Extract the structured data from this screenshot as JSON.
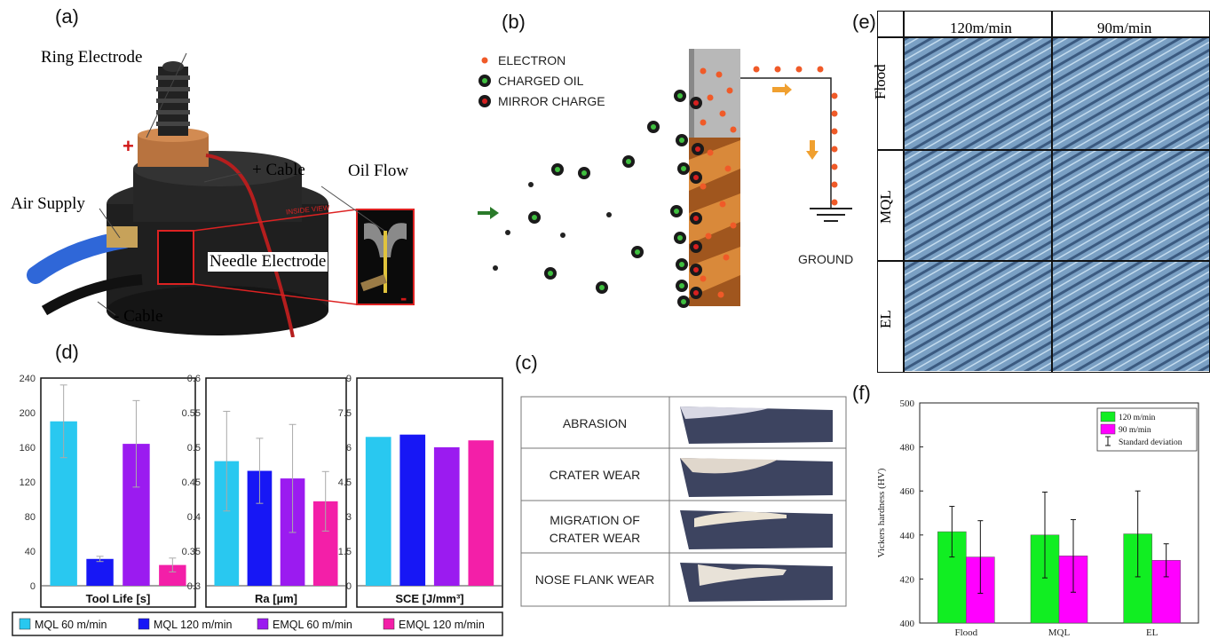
{
  "panels": {
    "a": {
      "label": "(a)",
      "callouts": {
        "ring_electrode": "Ring Electrode",
        "plus_cable": "+ Cable",
        "oil_flow": "Oil Flow",
        "air_supply": "Air Supply",
        "needle_electrode": "Needle Electrode",
        "minus_cable": "- Cable",
        "inside_view": "INSIDE VIEW",
        "plus_sign": "+",
        "minus_sign": "-"
      }
    },
    "b": {
      "label": "(b)",
      "legend": [
        "ELECTRON",
        "CHARGED OIL",
        "MIRROR CHARGE"
      ],
      "ground": "GROUND"
    },
    "c": {
      "label": "(c)",
      "rows": [
        "ABRASION",
        "CRATER WEAR",
        "MIGRATION OF CRATER WEAR",
        "NOSE FLANK WEAR"
      ]
    },
    "d": {
      "label": "(d)",
      "legend": [
        "MQL 60 m/min",
        "MQL 120 m/min",
        "EMQL 60 m/min",
        "EMQL 120 m/min"
      ],
      "colors": [
        "#29c8f0",
        "#1717f5",
        "#9b1bf0",
        "#f31fa8"
      ]
    },
    "e": {
      "label": "(e)",
      "columns": [
        "120m/min",
        "90m/min"
      ],
      "rows": [
        "Flood",
        "MQL",
        "EL"
      ]
    },
    "f": {
      "label": "(f)"
    }
  },
  "chart_data": [
    {
      "type": "bar",
      "id": "tool-life",
      "xlabel": "Tool Life [s]",
      "yticks": [
        "0",
        "40",
        "80",
        "120",
        "160",
        "200",
        "240"
      ],
      "ylim": [
        0,
        240
      ],
      "categories": [
        "MQL 60 m/min",
        "MQL 120 m/min",
        "EMQL 60 m/min",
        "EMQL 120 m/min"
      ],
      "values": [
        190,
        31,
        164,
        24
      ],
      "errors": [
        42,
        3,
        50,
        8
      ]
    },
    {
      "type": "bar",
      "id": "ra",
      "xlabel": "Ra [µm]",
      "yticks": [
        "0.3",
        "0.35",
        "0.4",
        "0.45",
        "0.5",
        "0.55",
        "0.6"
      ],
      "ylim": [
        0.3,
        0.6
      ],
      "categories": [
        "MQL 60 m/min",
        "MQL 120 m/min",
        "EMQL 60 m/min",
        "EMQL 120 m/min"
      ],
      "values": [
        0.48,
        0.466,
        0.455,
        0.422
      ],
      "errors": [
        0.072,
        0.047,
        0.078,
        0.043
      ]
    },
    {
      "type": "bar",
      "id": "sce",
      "xlabel": "SCE [J/mm³]",
      "yticks": [
        "0",
        "1.5",
        "3",
        "4.5",
        "6",
        "7.5",
        "9"
      ],
      "ylim": [
        0,
        9
      ],
      "categories": [
        "MQL 60 m/min",
        "MQL 120 m/min",
        "EMQL 60 m/min",
        "EMQL 120 m/min"
      ],
      "values": [
        6.45,
        6.55,
        6.0,
        6.3
      ]
    },
    {
      "type": "bar",
      "id": "vickers",
      "ylabel": "Vickers hardness (HV)",
      "yticks": [
        "400",
        "420",
        "440",
        "460",
        "480",
        "500"
      ],
      "ylim": [
        400,
        500
      ],
      "categories": [
        "Flood",
        "MQL",
        "EL"
      ],
      "series": [
        {
          "name": "120 m/min",
          "color": "#11ee22",
          "values": [
            441.5,
            440,
            440.5
          ],
          "errors": [
            11.5,
            19.5,
            19.5
          ]
        },
        {
          "name": "90 m/min",
          "color": "#ff00ff",
          "values": [
            430,
            430.5,
            428.5
          ],
          "errors": [
            16.5,
            16.5,
            7.5
          ]
        }
      ],
      "legend_extra": "Standard deviation",
      "legend_position": "top-right"
    }
  ]
}
